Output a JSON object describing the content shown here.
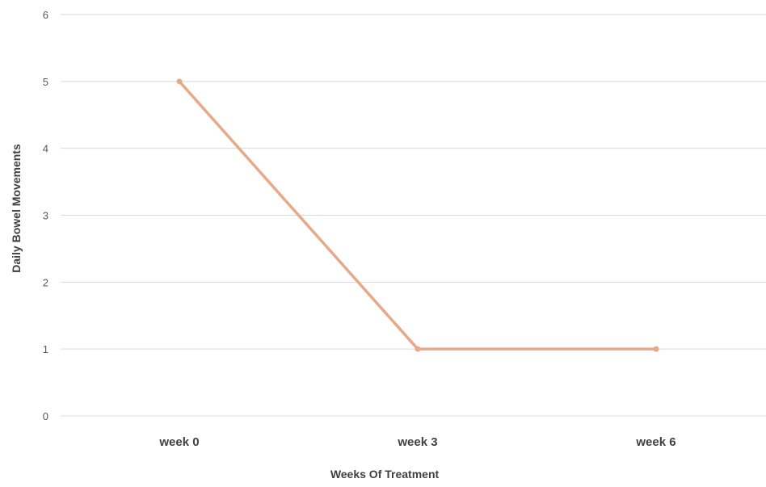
{
  "chart_data": {
    "type": "line",
    "title": "",
    "xlabel": "Weeks Of Treatment",
    "ylabel": "Daily Bowel Movements",
    "categories": [
      "week 0",
      "week 3",
      "week 6"
    ],
    "series": [
      {
        "values": [
          5,
          1,
          1
        ]
      }
    ],
    "ylim": [
      0,
      6
    ],
    "yticks": [
      "0",
      "1",
      "2",
      "3",
      "4",
      "5",
      "6"
    ],
    "grid": true,
    "legend": "none",
    "line_color": "#e8a989",
    "grid_color": "#d9d9d9"
  }
}
